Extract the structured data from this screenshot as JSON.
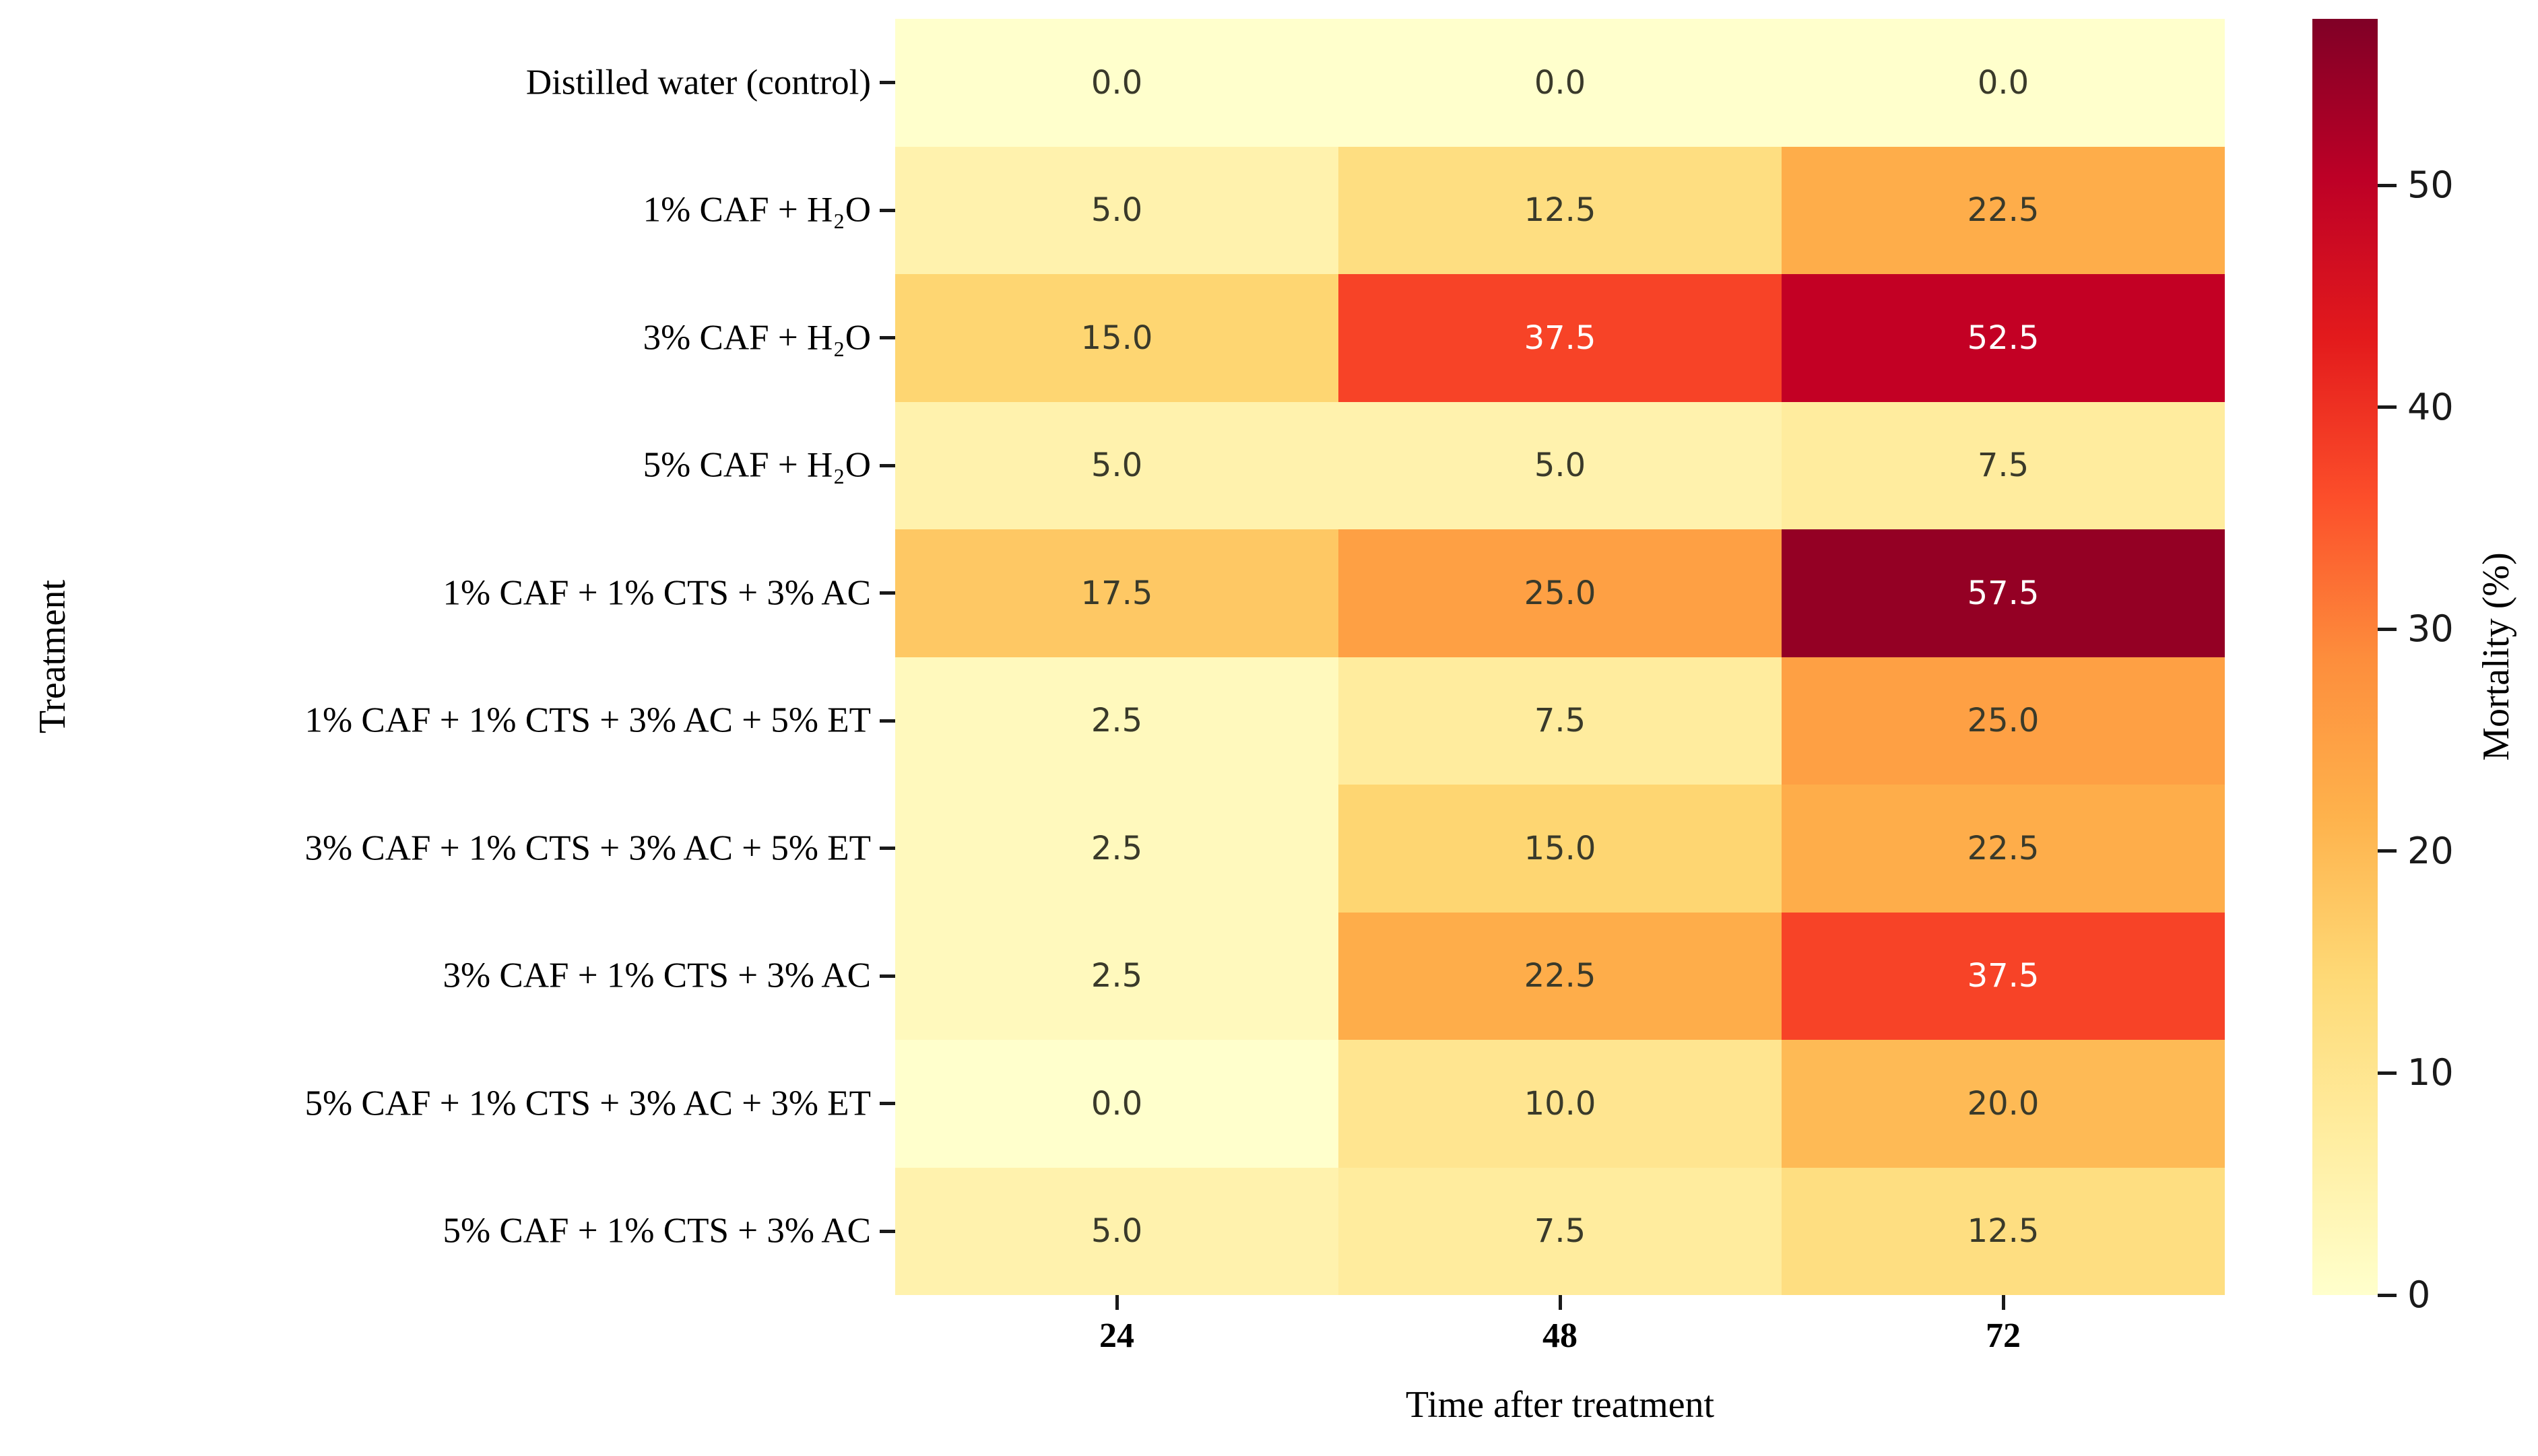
{
  "figure": {
    "background": "#ffffff"
  },
  "chart_data": {
    "type": "heatmap",
    "title": "",
    "xlabel": "Time after treatment",
    "ylabel": "Treatment",
    "colorbar_label": "Mortality (%)",
    "x_categories": [
      "24",
      "48",
      "72"
    ],
    "y_categories": [
      "Distilled water (control)",
      "1% CAF + H₂O",
      "3% CAF + H₂O",
      "5% CAF + H₂O",
      "1% CAF + 1% CTS + 3% AC",
      "1% CAF + 1% CTS + 3% AC + 5% ET",
      "3% CAF + 1% CTS + 3% AC + 5% ET",
      "3% CAF + 1% CTS + 3% AC",
      "5% CAF + 1% CTS + 3% AC + 3% ET",
      "5% CAF + 1% CTS + 3% AC"
    ],
    "values": [
      [
        0.0,
        0.0,
        0.0
      ],
      [
        5.0,
        12.5,
        22.5
      ],
      [
        15.0,
        37.5,
        52.5
      ],
      [
        5.0,
        5.0,
        7.5
      ],
      [
        17.5,
        25.0,
        57.5
      ],
      [
        2.5,
        7.5,
        25.0
      ],
      [
        2.5,
        15.0,
        22.5
      ],
      [
        2.5,
        22.5,
        37.5
      ],
      [
        0.0,
        10.0,
        20.0
      ],
      [
        5.0,
        7.5,
        12.5
      ]
    ],
    "cell_labels": [
      [
        "0.0",
        "0.0",
        "0.0"
      ],
      [
        "5.0",
        "12.5",
        "22.5"
      ],
      [
        "15.0",
        "37.5",
        "52.5"
      ],
      [
        "5.0",
        "5.0",
        "7.5"
      ],
      [
        "17.5",
        "25.0",
        "57.5"
      ],
      [
        "2.5",
        "7.5",
        "25.0"
      ],
      [
        "2.5",
        "15.0",
        "22.5"
      ],
      [
        "2.5",
        "22.5",
        "37.5"
      ],
      [
        "0.0",
        "10.0",
        "20.0"
      ],
      [
        "5.0",
        "7.5",
        "12.5"
      ]
    ],
    "cell_colors": [
      [
        "#ffffcc",
        "#ffffcc",
        "#ffffcc"
      ],
      [
        "#fff2ad",
        "#fede81",
        "#fead4a"
      ],
      [
        "#fed672",
        "#f74327",
        "#c30024"
      ],
      [
        "#fff2ad",
        "#fff2ad",
        "#ffec9e"
      ],
      [
        "#fec864",
        "#fea044",
        "#940024"
      ],
      [
        "#fff9bd",
        "#ffec9e",
        "#fea044"
      ],
      [
        "#fff9bd",
        "#fed672",
        "#fead4a"
      ],
      [
        "#fff9bd",
        "#fead4a",
        "#f74327"
      ],
      [
        "#ffffcc",
        "#ffe590",
        "#feba55"
      ],
      [
        "#fff2ad",
        "#ffec9e",
        "#fede81"
      ]
    ],
    "cell_text_colors": [
      [
        "#3a3a2a",
        "#3a3a2a",
        "#3a3a2a"
      ],
      [
        "#3a3a2a",
        "#3a3a2a",
        "#3a3a2a"
      ],
      [
        "#3a3a2a",
        "#ffffff",
        "#ffffff"
      ],
      [
        "#3a3a2a",
        "#3a3a2a",
        "#3a3a2a"
      ],
      [
        "#3a3a2a",
        "#3a3a2a",
        "#ffffff"
      ],
      [
        "#3a3a2a",
        "#3a3a2a",
        "#3a3a2a"
      ],
      [
        "#3a3a2a",
        "#3a3a2a",
        "#3a3a2a"
      ],
      [
        "#3a3a2a",
        "#3a3a2a",
        "#ffffff"
      ],
      [
        "#3a3a2a",
        "#3a3a2a",
        "#3a3a2a"
      ],
      [
        "#3a3a2a",
        "#3a3a2a",
        "#3a3a2a"
      ]
    ],
    "colorbar": {
      "vmin": 0,
      "vmax": 57.5,
      "ticks": [
        "0",
        "10",
        "20",
        "30",
        "40",
        "50"
      ],
      "tick_values": [
        0,
        10,
        20,
        30,
        40,
        50
      ],
      "colormap_name": "YlOrRd",
      "gradient_stops": [
        "#ffffcc",
        "#ffeda0",
        "#fed976",
        "#feb24c",
        "#fd8d3c",
        "#fc4e2a",
        "#e31a1c",
        "#bd0026",
        "#800026"
      ]
    },
    "grid": false,
    "legend_position": "right"
  }
}
